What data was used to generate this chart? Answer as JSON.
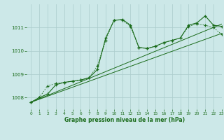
{
  "title": "Graphe pression niveau de la mer (hPa)",
  "bg_color": "#cce8e8",
  "grid_color": "#aacccc",
  "line_color": "#1a6b1a",
  "xlim": [
    -0.5,
    23
  ],
  "ylim": [
    1007.5,
    1012.0
  ],
  "yticks": [
    1008,
    1009,
    1010,
    1011
  ],
  "xticks": [
    0,
    1,
    2,
    3,
    4,
    5,
    6,
    7,
    8,
    9,
    10,
    11,
    12,
    13,
    14,
    15,
    16,
    17,
    18,
    19,
    20,
    21,
    22,
    23
  ],
  "series1_x": [
    0,
    1,
    2,
    3,
    4,
    5,
    6,
    7,
    8,
    9,
    10,
    11,
    12,
    13,
    14,
    15,
    16,
    17,
    18,
    19,
    20,
    21,
    22,
    23
  ],
  "series1_y": [
    1007.8,
    1008.0,
    1008.15,
    1008.55,
    1008.65,
    1008.7,
    1008.75,
    1008.85,
    1009.2,
    1010.55,
    1011.3,
    1011.35,
    1011.1,
    1010.15,
    1010.1,
    1010.2,
    1010.35,
    1010.45,
    1010.55,
    1011.1,
    1011.2,
    1011.5,
    1011.1,
    1011.05
  ],
  "series2_x": [
    0,
    1,
    2,
    3,
    4,
    5,
    6,
    7,
    8,
    9,
    10,
    11,
    12,
    13,
    14,
    15,
    16,
    17,
    18,
    19,
    20,
    21,
    22,
    23
  ],
  "series2_y": [
    1007.8,
    1008.0,
    1008.5,
    1008.6,
    1008.65,
    1008.7,
    1008.75,
    1008.85,
    1009.35,
    1010.45,
    1011.32,
    1011.32,
    1011.05,
    1010.15,
    1010.1,
    1010.2,
    1010.35,
    1010.45,
    1010.55,
    1011.05,
    1011.15,
    1011.1,
    1011.0,
    1010.7
  ],
  "line1_x": [
    0,
    23
  ],
  "line1_y": [
    1007.8,
    1010.75
  ],
  "line2_x": [
    0,
    23
  ],
  "line2_y": [
    1007.8,
    1011.15
  ]
}
